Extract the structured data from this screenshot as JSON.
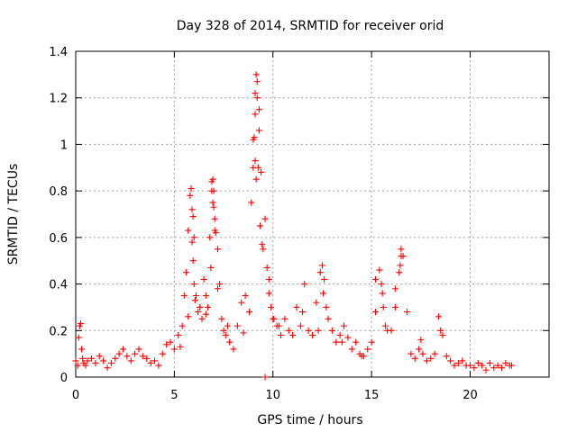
{
  "chart_data": {
    "type": "scatter",
    "title": "Day 328 of 2014, SRMTID for receiver orid",
    "xlabel": "GPS time / hours",
    "ylabel": "SRMTID / TECUs",
    "xlim": [
      0,
      24
    ],
    "ylim": [
      0,
      1.4
    ],
    "xticks": [
      0,
      5,
      10,
      15,
      20
    ],
    "xtick_labels": [
      "0",
      "5",
      "10",
      "15",
      "20"
    ],
    "yticks": [
      0,
      0.2,
      0.4,
      0.6,
      0.8,
      1,
      1.2,
      1.4
    ],
    "ytick_labels": [
      "0",
      "0.2",
      "0.4",
      "0.6",
      "0.8",
      "1",
      "1.2",
      "1.4"
    ],
    "grid": true,
    "marker": "plus",
    "series": [
      {
        "name": "SRMTID",
        "color": "#ff0000",
        "x": [
          0.0,
          0.1,
          0.15,
          0.2,
          0.25,
          0.3,
          0.35,
          0.4,
          0.5,
          0.6,
          0.8,
          1.0,
          1.2,
          1.4,
          1.6,
          1.8,
          2.0,
          2.2,
          2.4,
          2.6,
          2.8,
          3.0,
          3.2,
          3.4,
          3.6,
          3.8,
          4.0,
          4.2,
          4.4,
          4.6,
          4.8,
          5.0,
          5.2,
          5.4,
          5.5,
          5.6,
          5.7,
          5.8,
          5.85,
          5.9,
          5.95,
          6.0,
          6.1,
          6.2,
          6.3,
          6.4,
          6.5,
          6.6,
          6.7,
          6.8,
          6.9,
          6.95,
          7.0,
          7.05,
          7.1,
          7.2,
          7.3,
          7.4,
          7.5,
          7.6,
          7.8,
          8.0,
          8.2,
          8.4,
          8.6,
          8.8,
          8.9,
          9.0,
          9.05,
          9.1,
          9.15,
          9.2,
          9.3,
          9.4,
          9.5,
          9.6,
          9.7,
          9.8,
          9.9,
          10.0,
          10.2,
          10.4,
          10.6,
          10.8,
          11.0,
          11.2,
          11.4,
          11.6,
          11.8,
          12.0,
          12.2,
          12.4,
          12.5,
          12.6,
          12.7,
          12.8,
          13.0,
          13.2,
          13.4,
          13.6,
          13.8,
          14.0,
          14.2,
          14.4,
          14.6,
          14.8,
          15.0,
          15.2,
          15.4,
          15.5,
          15.6,
          15.7,
          15.8,
          16.0,
          16.2,
          16.4,
          16.5,
          16.6,
          16.8,
          17.0,
          17.2,
          17.4,
          17.6,
          17.8,
          18.0,
          18.2,
          18.4,
          18.6,
          18.8,
          19.0,
          19.2,
          19.4,
          19.6,
          19.8,
          20.0,
          20.2,
          20.4,
          20.6,
          20.8,
          21.0,
          21.2,
          21.4,
          21.6,
          21.8,
          22.0,
          22.1,
          9.1,
          9.2,
          9.0,
          9.3,
          9.1,
          6.9,
          7.0,
          6.95,
          5.95,
          6.0,
          16.45,
          16.5,
          12.55,
          15.55,
          9.15,
          9.25,
          9.35,
          9.45,
          7.05,
          6.85,
          5.9,
          6.05,
          9.6,
          10.05,
          5.3,
          5.7,
          6.3,
          6.6,
          7.2,
          7.7,
          8.5,
          9.8,
          10.3,
          11.5,
          12.3,
          13.5,
          14.5,
          15.2,
          16.2,
          17.5,
          18.5
        ],
        "y": [
          0.07,
          0.05,
          0.17,
          0.22,
          0.23,
          0.12,
          0.08,
          0.06,
          0.05,
          0.07,
          0.08,
          0.06,
          0.09,
          0.07,
          0.04,
          0.06,
          0.08,
          0.1,
          0.12,
          0.09,
          0.07,
          0.1,
          0.12,
          0.09,
          0.08,
          0.06,
          0.07,
          0.05,
          0.1,
          0.14,
          0.15,
          0.12,
          0.18,
          0.22,
          0.35,
          0.45,
          0.63,
          0.78,
          0.81,
          0.72,
          0.5,
          0.4,
          0.35,
          0.28,
          0.3,
          0.25,
          0.42,
          0.35,
          0.3,
          0.6,
          0.84,
          0.85,
          0.8,
          0.68,
          0.62,
          0.55,
          0.4,
          0.25,
          0.2,
          0.18,
          0.15,
          0.12,
          0.22,
          0.32,
          0.35,
          0.28,
          0.75,
          0.9,
          1.03,
          1.22,
          1.3,
          1.27,
          1.15,
          0.88,
          0.55,
          0.68,
          0.47,
          0.42,
          0.3,
          0.25,
          0.22,
          0.18,
          0.25,
          0.2,
          0.18,
          0.3,
          0.22,
          0.4,
          0.2,
          0.18,
          0.32,
          0.45,
          0.48,
          0.42,
          0.3,
          0.25,
          0.2,
          0.15,
          0.18,
          0.22,
          0.17,
          0.12,
          0.15,
          0.1,
          0.09,
          0.12,
          0.15,
          0.42,
          0.46,
          0.4,
          0.3,
          0.22,
          0.2,
          0.2,
          0.3,
          0.45,
          0.55,
          0.52,
          0.28,
          0.1,
          0.08,
          0.12,
          0.1,
          0.07,
          0.08,
          0.1,
          0.26,
          0.18,
          0.09,
          0.07,
          0.05,
          0.06,
          0.07,
          0.05,
          0.05,
          0.04,
          0.06,
          0.05,
          0.03,
          0.06,
          0.04,
          0.05,
          0.04,
          0.06,
          0.05,
          0.05,
          1.13,
          1.2,
          1.02,
          1.06,
          0.93,
          0.8,
          0.73,
          0.75,
          0.69,
          0.6,
          0.48,
          0.52,
          0.36,
          0.36,
          0.85,
          0.9,
          0.65,
          0.57,
          0.63,
          0.47,
          0.58,
          0.33,
          0.0,
          0.25,
          0.13,
          0.26,
          0.3,
          0.27,
          0.38,
          0.22,
          0.19,
          0.36,
          0.22,
          0.28,
          0.2,
          0.15,
          0.09,
          0.28,
          0.38,
          0.16,
          0.2
        ]
      }
    ]
  }
}
